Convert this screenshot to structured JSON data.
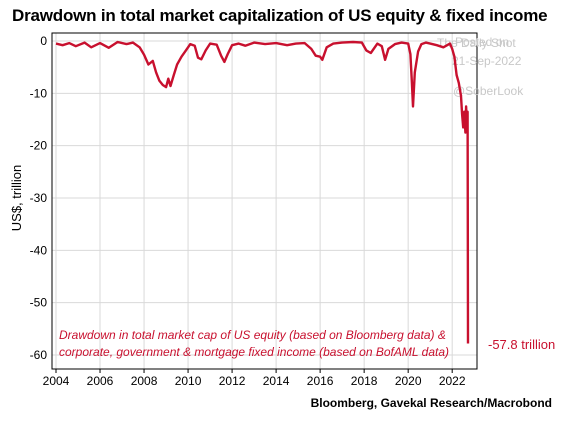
{
  "title": "Drawdown in total market capitalization of US equity & fixed income",
  "source": "Bloomberg, Gavekal Research/Macrobond",
  "watermark": {
    "line1": "Posted on",
    "line2": "The Daily Shot",
    "line3": "21-Sep-2022",
    "line4": "@SoberLook"
  },
  "chart_data": {
    "type": "line",
    "title": "Drawdown in total market capitalization of US equity & fixed income",
    "ylabel": "US$, trillion",
    "xlabel": "",
    "xlim": [
      2004,
      2022.9
    ],
    "ylim": [
      -62,
      0.5
    ],
    "x_ticks": [
      "2004",
      "2006",
      "2008",
      "2010",
      "2012",
      "2014",
      "2016",
      "2018",
      "2020",
      "2022"
    ],
    "y_ticks": [
      "0",
      "-10",
      "-20",
      "-30",
      "-40",
      "-50",
      "-60"
    ],
    "grid": true,
    "annotation_line1": "Drawdown in total market cap of US equity (based on Bloomberg data) &",
    "annotation_line2": "corporate, government & mortgage fixed income (based on BofAML data)",
    "end_label": "-57.8 trillion",
    "color": "#c8102e",
    "series": [
      {
        "x": [
          2004.0,
          2004.3,
          2004.6,
          2004.9,
          2005.3,
          2005.6,
          2006.0,
          2006.4,
          2006.8,
          2007.2,
          2007.5,
          2007.8,
          2008.0,
          2008.2,
          2008.4,
          2008.55,
          2008.7,
          2008.85,
          2009.0,
          2009.1,
          2009.2,
          2009.35,
          2009.5,
          2009.7,
          2009.9,
          2010.1,
          2010.3,
          2010.45,
          2010.6,
          2010.8,
          2011.0,
          2011.3,
          2011.5,
          2011.65,
          2011.8,
          2012.0,
          2012.3,
          2012.6,
          2013.0,
          2013.5,
          2014.0,
          2014.5,
          2014.9,
          2015.3,
          2015.6,
          2015.8,
          2016.0,
          2016.1,
          2016.3,
          2016.6,
          2017.0,
          2017.5,
          2017.9,
          2018.1,
          2018.3,
          2018.6,
          2018.8,
          2018.95,
          2019.1,
          2019.4,
          2019.7,
          2020.0,
          2020.1,
          2020.17,
          2020.22,
          2020.3,
          2020.45,
          2020.6,
          2020.8,
          2021.0,
          2021.3,
          2021.6,
          2021.9,
          2022.0,
          2022.1,
          2022.2,
          2022.3,
          2022.4,
          2022.45,
          2022.5,
          2022.55,
          2022.6,
          2022.63,
          2022.66,
          2022.7,
          2022.72
        ],
        "y": [
          -0.5,
          -0.8,
          -0.4,
          -1.0,
          -0.3,
          -1.2,
          -0.4,
          -1.3,
          -0.2,
          -0.6,
          -0.3,
          -1.2,
          -2.6,
          -4.5,
          -3.8,
          -6.0,
          -7.6,
          -8.4,
          -8.8,
          -7.2,
          -8.6,
          -6.5,
          -4.5,
          -3.0,
          -1.8,
          -0.6,
          -0.9,
          -3.2,
          -3.5,
          -1.8,
          -0.5,
          -0.7,
          -2.8,
          -4.0,
          -2.5,
          -0.8,
          -0.5,
          -0.9,
          -0.3,
          -0.6,
          -0.4,
          -0.8,
          -0.5,
          -0.4,
          -1.5,
          -2.8,
          -3.0,
          -3.6,
          -1.2,
          -0.5,
          -0.3,
          -0.2,
          -0.3,
          -1.8,
          -2.3,
          -0.5,
          -1.0,
          -3.6,
          -1.5,
          -0.6,
          -0.3,
          -0.5,
          -2.5,
          -8.0,
          -12.5,
          -6.0,
          -2.0,
          -0.6,
          -0.3,
          -0.5,
          -0.8,
          -1.2,
          -0.5,
          -1.5,
          -3.0,
          -6.5,
          -8.0,
          -10.5,
          -14.0,
          -16.5,
          -13.5,
          -17.5,
          -12.5,
          -15.0,
          -13.5,
          -57.8
        ]
      }
    ]
  }
}
